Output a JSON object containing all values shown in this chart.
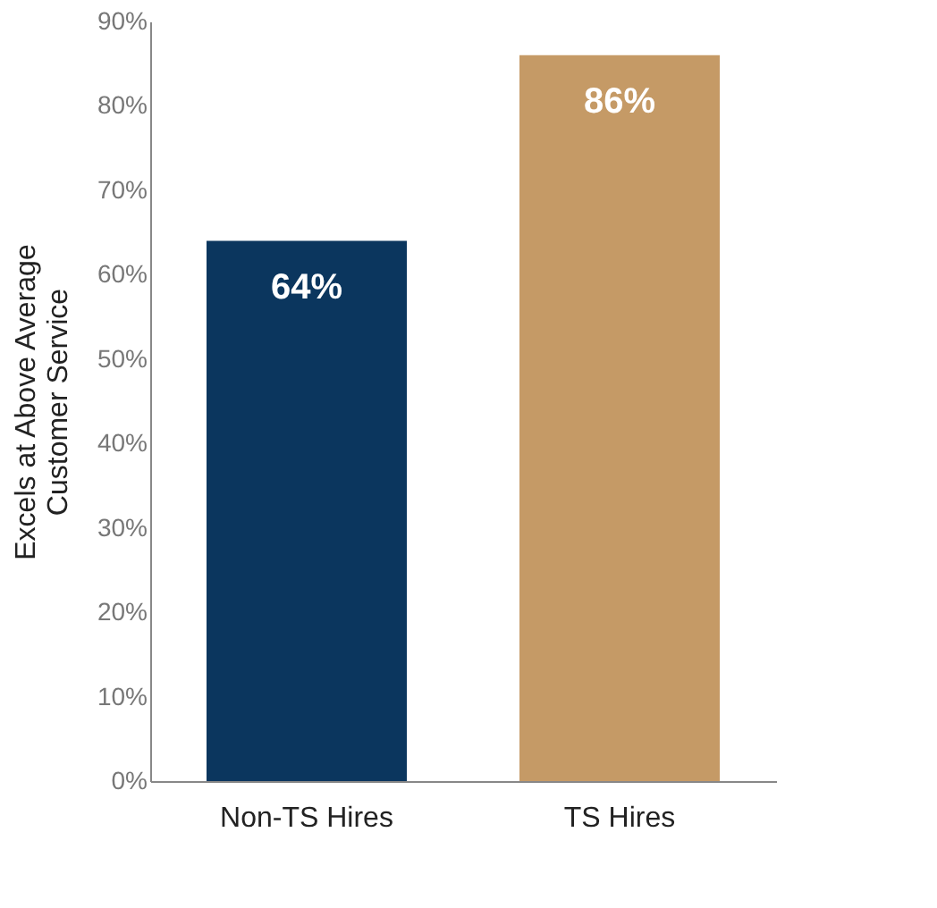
{
  "chart_data": {
    "type": "bar",
    "ylabel": "Excels at Above Average\nCustomer Service",
    "categories": [
      "Non-TS Hires",
      "TS Hires"
    ],
    "values": [
      64,
      86
    ],
    "colors": [
      "#0b365e",
      "#c59a66"
    ],
    "value_labels": [
      "64%",
      "86%"
    ],
    "ylim": [
      0,
      90
    ],
    "yticks": [
      {
        "value": 0,
        "label": "0%"
      },
      {
        "value": 10,
        "label": "10%"
      },
      {
        "value": 20,
        "label": "20%"
      },
      {
        "value": 30,
        "label": "30%"
      },
      {
        "value": 40,
        "label": "40%"
      },
      {
        "value": 50,
        "label": "50%"
      },
      {
        "value": 60,
        "label": "60%"
      },
      {
        "value": 70,
        "label": "70%"
      },
      {
        "value": 80,
        "label": "80%"
      },
      {
        "value": 90,
        "label": "90%"
      }
    ],
    "grid": false
  }
}
